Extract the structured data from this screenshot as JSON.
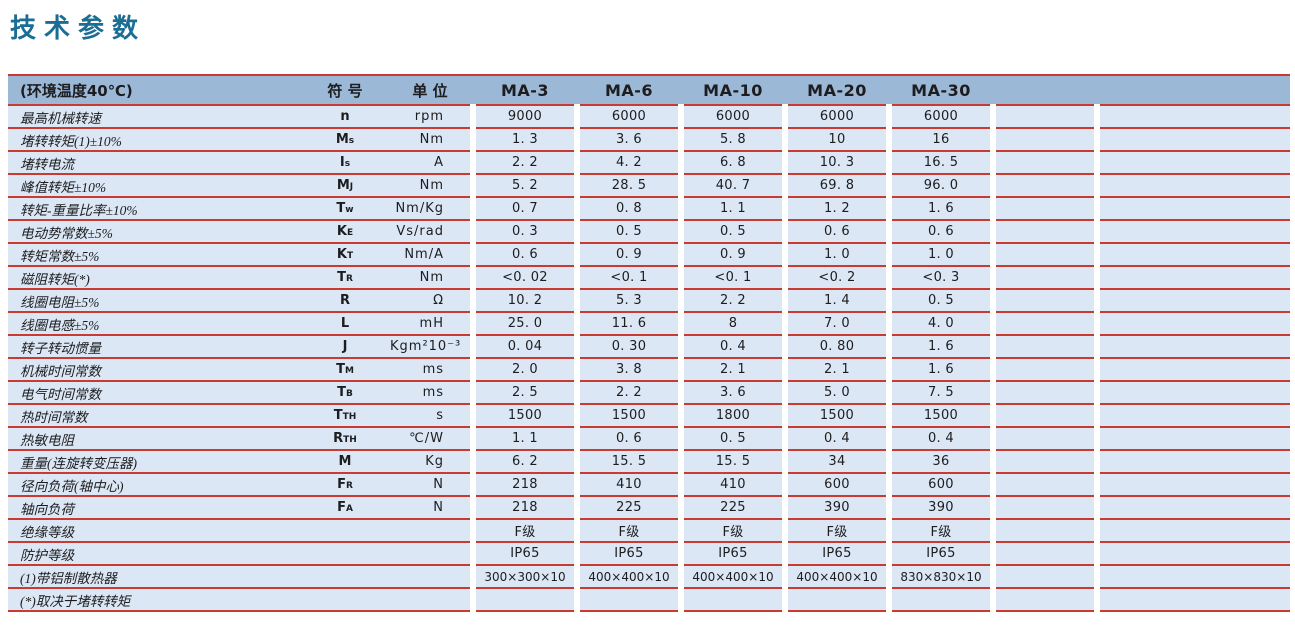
{
  "page": {
    "title": "技术参数"
  },
  "table": {
    "header": {
      "condition": "(环境温度40℃)",
      "symbol_col": "符 号",
      "unit_col": "单 位",
      "models": [
        "MA-3",
        "MA-6",
        "MA-10",
        "MA-20",
        "MA-30"
      ],
      "extra_empty_columns": 2
    },
    "rows": [
      {
        "label": "最高机械转速",
        "symbol": {
          "base": "n",
          "sub": ""
        },
        "unit": "rpm",
        "values": [
          "9000",
          "6000",
          "6000",
          "6000",
          "6000"
        ]
      },
      {
        "label": "堵转转矩(1)±10%",
        "symbol": {
          "base": "M",
          "sub": "s"
        },
        "unit": "Nm",
        "values": [
          "1. 3",
          "3. 6",
          "5. 8",
          "10",
          "16"
        ]
      },
      {
        "label": "堵转电流",
        "symbol": {
          "base": "I",
          "sub": "s"
        },
        "unit": "A",
        "values": [
          "2. 2",
          "4. 2",
          "6. 8",
          "10. 3",
          "16. 5"
        ]
      },
      {
        "label": "峰值转矩±10%",
        "symbol": {
          "base": "M",
          "sub": "J"
        },
        "unit": "Nm",
        "values": [
          "5. 2",
          "28. 5",
          "40. 7",
          "69. 8",
          "96. 0"
        ]
      },
      {
        "label": "转矩-重量比率±10%",
        "symbol": {
          "base": "T",
          "sub": "w"
        },
        "unit": "Nm/Kg",
        "values": [
          "0. 7",
          "0. 8",
          "1. 1",
          "1. 2",
          "1. 6"
        ]
      },
      {
        "label": "电动势常数±5%",
        "symbol": {
          "base": "K",
          "sub": "E"
        },
        "unit": "Vs/rad",
        "values": [
          "0. 3",
          "0. 5",
          "0. 5",
          "0. 6",
          "0. 6"
        ]
      },
      {
        "label": "转矩常数±5%",
        "symbol": {
          "base": "K",
          "sub": "T"
        },
        "unit": "Nm/A",
        "values": [
          "0. 6",
          "0. 9",
          "0. 9",
          "1. 0",
          "1. 0"
        ]
      },
      {
        "label": "磁阻转矩(*)",
        "symbol": {
          "base": "T",
          "sub": "R"
        },
        "unit": "Nm",
        "values": [
          "<0. 02",
          "<0. 1",
          "<0. 1",
          "<0. 2",
          "<0. 3"
        ]
      },
      {
        "label": "线圈电阻±5%",
        "symbol": {
          "base": "R",
          "sub": ""
        },
        "unit": "Ω",
        "values": [
          "10. 2",
          "5. 3",
          "2. 2",
          "1. 4",
          "0. 5"
        ]
      },
      {
        "label": "线圈电感±5%",
        "symbol": {
          "base": "L",
          "sub": ""
        },
        "unit": "mH",
        "values": [
          "25. 0",
          "11. 6",
          "8",
          "7. 0",
          "4. 0"
        ]
      },
      {
        "label": "转子转动惯量",
        "symbol": {
          "base": "J",
          "sub": ""
        },
        "unit": "Kgm²10⁻³",
        "values": [
          "0. 04",
          "0. 30",
          "0. 4",
          "0. 80",
          "1. 6"
        ]
      },
      {
        "label": "机械时间常数",
        "symbol": {
          "base": "T",
          "sub": "M"
        },
        "unit": "ms",
        "values": [
          "2. 0",
          "3. 8",
          "2. 1",
          "2. 1",
          "1. 6"
        ]
      },
      {
        "label": "电气时间常数",
        "symbol": {
          "base": "T",
          "sub": "B"
        },
        "unit": "ms",
        "values": [
          "2. 5",
          "2. 2",
          "3. 6",
          "5. 0",
          "7. 5"
        ]
      },
      {
        "label": "热时间常数",
        "symbol": {
          "base": "T",
          "sub": "TH"
        },
        "unit": "s",
        "values": [
          "1500",
          "1500",
          "1800",
          "1500",
          "1500"
        ]
      },
      {
        "label": "热敏电阻",
        "symbol": {
          "base": "R",
          "sub": "TH"
        },
        "unit": "℃/W",
        "values": [
          "1. 1",
          "0. 6",
          "0. 5",
          "0. 4",
          "0. 4"
        ]
      },
      {
        "label": "重量(连旋转变压器)",
        "symbol": {
          "base": "M",
          "sub": ""
        },
        "unit": "Kg",
        "values": [
          "6. 2",
          "15. 5",
          "15. 5",
          "34",
          "36"
        ]
      },
      {
        "label": "径向负荷(轴中心)",
        "symbol": {
          "base": "F",
          "sub": "R"
        },
        "unit": "N",
        "values": [
          "218",
          "410",
          "410",
          "600",
          "600"
        ]
      },
      {
        "label": "轴向负荷",
        "symbol": {
          "base": "F",
          "sub": "A"
        },
        "unit": "N",
        "values": [
          "218",
          "225",
          "225",
          "390",
          "390"
        ]
      },
      {
        "label": "绝缘等级",
        "symbol": {
          "base": "",
          "sub": ""
        },
        "unit": "",
        "values": [
          "F级",
          "F级",
          "F级",
          "F级",
          "F级"
        ]
      },
      {
        "label": "防护等级",
        "symbol": {
          "base": "",
          "sub": ""
        },
        "unit": "",
        "values": [
          "IP65",
          "IP65",
          "IP65",
          "IP65",
          "IP65"
        ]
      },
      {
        "label": "(1)带铝制散热器",
        "symbol": {
          "base": "",
          "sub": ""
        },
        "unit": "",
        "values": [
          "300×300×10",
          "400×400×10",
          "400×400×10",
          "400×400×10",
          "830×830×10"
        ]
      },
      {
        "label": "(*)取决于堵转转矩",
        "symbol": {
          "base": "",
          "sub": ""
        },
        "unit": "",
        "values": [
          "",
          "",
          "",
          "",
          ""
        ]
      }
    ],
    "colors": {
      "title_text": "#1b6e93",
      "header_bg": "#9cb8d7",
      "row_bg": "#dbe7f5",
      "grid_line": "#c93a30",
      "text": "#1d1d1f"
    }
  }
}
